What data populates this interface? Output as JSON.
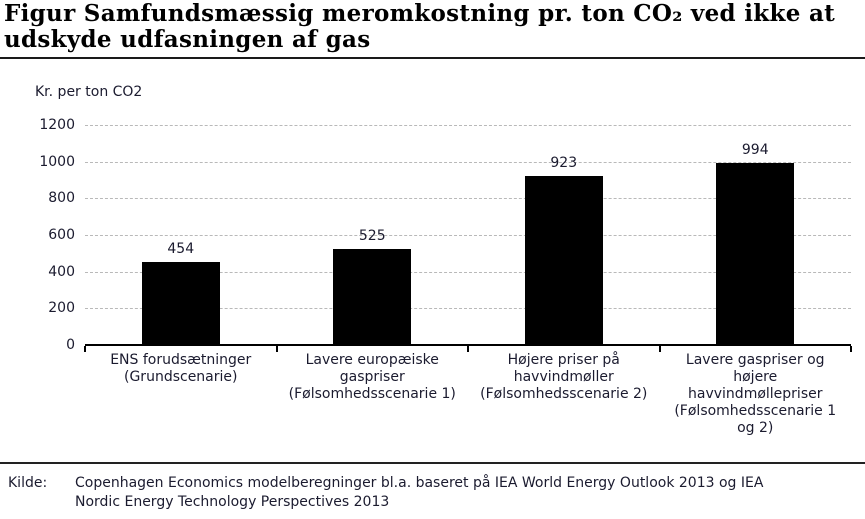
{
  "title": {
    "lines": [
      "Figur Samfundsmæssig meromkostning pr. ton CO₂ ved ikke at",
      "udskyde udfasningen af gas"
    ]
  },
  "chart_data": {
    "type": "bar",
    "title": "Figur Samfundsmæssig meromkostning pr. ton CO₂ ved ikke at udskyde udfasningen af gas",
    "ylabel": "Kr. per ton CO2",
    "xlabel": "",
    "categories": [
      "ENS forudsætninger (Grundscenarie)",
      "Lavere europæiske gaspriser (Følsomhedsscenarie 1)",
      "Højere priser på havvindmøller (Følsomhedsscenarie 2)",
      "Lavere gaspriser og højere havvindmøllepriser (Følsomhedsscenarie 1 og 2)"
    ],
    "category_lines": [
      [
        "ENS forudsætninger",
        "(Grundscenarie)"
      ],
      [
        "Lavere europæiske",
        "gaspriser",
        "(Følsomhedsscenarie 1)"
      ],
      [
        "Højere priser på",
        "havvindmøller",
        "(Følsomhedsscenarie 2)"
      ],
      [
        "Lavere gaspriser og",
        "højere",
        "havvindmøllepriser",
        "(Følsomhedsscenarie 1",
        "og 2)"
      ]
    ],
    "values": [
      454,
      525,
      923,
      994
    ],
    "data_labels": [
      "454",
      "525",
      "923",
      "994"
    ],
    "ylim": [
      0,
      1200
    ],
    "yticks": [
      0,
      200,
      400,
      600,
      800,
      1000,
      1200
    ],
    "grid": "horizontal-dashed",
    "legend": "none",
    "bar_color": "#000000"
  },
  "footer": {
    "source_label": "Kilde:",
    "source_lines": [
      "Copenhagen Economics modelberegninger bl.a. baseret på IEA World Energy Outlook 2013 og IEA",
      "Nordic Energy Technology Perspectives 2013"
    ]
  },
  "colors": {
    "bar": "#000000",
    "gridline": "#b9b9b9",
    "axis": "#000000",
    "text": "#1b1b2f",
    "title_text": "#000000"
  }
}
